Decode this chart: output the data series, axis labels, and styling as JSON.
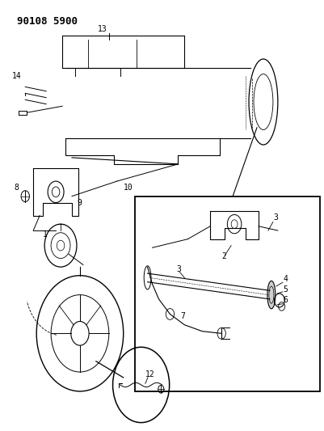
{
  "bg_color": "#ffffff",
  "line_color": "#000000",
  "header": "90108 5900"
}
